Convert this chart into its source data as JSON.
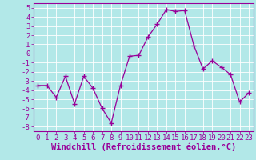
{
  "x": [
    0,
    1,
    2,
    3,
    4,
    5,
    6,
    7,
    8,
    9,
    10,
    11,
    12,
    13,
    14,
    15,
    16,
    17,
    18,
    19,
    20,
    21,
    22,
    23
  ],
  "y": [
    -3.5,
    -3.5,
    -4.8,
    -2.5,
    -5.5,
    -2.5,
    -3.8,
    -6.0,
    -7.6,
    -3.5,
    -0.3,
    -0.2,
    1.8,
    3.2,
    4.8,
    4.6,
    4.7,
    0.9,
    -1.7,
    -0.8,
    -1.5,
    -2.3,
    -5.3,
    -4.3
  ],
  "line_color": "#990099",
  "marker": "+",
  "bg_color": "#b2e8e8",
  "grid_color": "#ffffff",
  "xlabel": "Windchill (Refroidissement éolien,°C)",
  "xlim": [
    -0.5,
    23.5
  ],
  "ylim": [
    -8.5,
    5.5
  ],
  "yticks": [
    -8,
    -7,
    -6,
    -5,
    -4,
    -3,
    -2,
    -1,
    0,
    1,
    2,
    3,
    4,
    5
  ],
  "xticks": [
    0,
    1,
    2,
    3,
    4,
    5,
    6,
    7,
    8,
    9,
    10,
    11,
    12,
    13,
    14,
    15,
    16,
    17,
    18,
    19,
    20,
    21,
    22,
    23
  ],
  "tick_fontsize": 6.5,
  "label_fontsize": 7.5
}
